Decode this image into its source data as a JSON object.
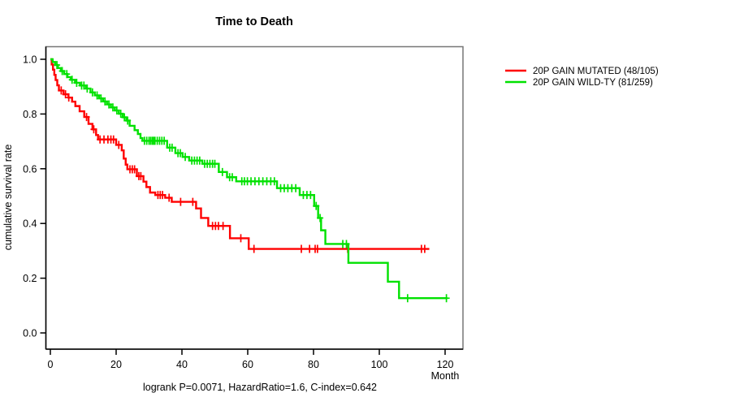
{
  "chart_data": {
    "type": "line",
    "subtype": "kaplan-meier-step-curve",
    "title": "Time to Death",
    "xlabel": "Month",
    "ylabel": "cumulative survival rate",
    "caption": "logrank P=0.0071, HazardRatio=1.6, C-index=0.642",
    "logrank_p": "0.0071",
    "hazard_ratio": "1.6",
    "c_index": "0.642",
    "x_ticks": [
      0,
      20,
      40,
      60,
      80,
      100,
      120
    ],
    "y_ticks": [
      "0.0",
      "0.2",
      "0.4",
      "0.6",
      "0.8",
      "1.0"
    ],
    "xlim": [
      0,
      125
    ],
    "ylim": [
      0.0,
      1.0
    ],
    "grid": false,
    "legend_position": "right-outside",
    "series": [
      {
        "name": "20P GAIN MUTATED (48/105)",
        "events": 48,
        "n": 105,
        "color": "#ff0000",
        "steps": [
          [
            0,
            1.0
          ],
          [
            0.4,
            0.981
          ],
          [
            0.8,
            0.962
          ],
          [
            1.2,
            0.943
          ],
          [
            1.6,
            0.924
          ],
          [
            2.1,
            0.905
          ],
          [
            2.6,
            0.886
          ],
          [
            4.0,
            0.872
          ],
          [
            5.5,
            0.86
          ],
          [
            6.6,
            0.845
          ],
          [
            7.6,
            0.829
          ],
          [
            8.9,
            0.81
          ],
          [
            10.3,
            0.789
          ],
          [
            11.6,
            0.764
          ],
          [
            12.8,
            0.744
          ],
          [
            13.9,
            0.723
          ],
          [
            14.5,
            0.707
          ],
          [
            20.0,
            0.687
          ],
          [
            21.7,
            0.667
          ],
          [
            22.3,
            0.637
          ],
          [
            22.9,
            0.615
          ],
          [
            23.4,
            0.598
          ],
          [
            26.3,
            0.573
          ],
          [
            28.3,
            0.553
          ],
          [
            29.2,
            0.533
          ],
          [
            30.3,
            0.513
          ],
          [
            31.9,
            0.504
          ],
          [
            34.9,
            0.494
          ],
          [
            36.9,
            0.479
          ],
          [
            44.3,
            0.455
          ],
          [
            45.8,
            0.42
          ],
          [
            48.0,
            0.391
          ],
          [
            54.6,
            0.346
          ],
          [
            60.3,
            0.307
          ]
        ],
        "end_month": 115.2,
        "censor_months": [
          3.3,
          4.6,
          5.6,
          11.0,
          13.2,
          15.1,
          16.3,
          17.5,
          18.4,
          19.2,
          20.8,
          24.2,
          24.9,
          25.6,
          26.9,
          27.5,
          32.7,
          33.4,
          34.1,
          36.1,
          39.6,
          43.3,
          49.3,
          50.2,
          51.1,
          52.5,
          57.9,
          61.9,
          76.3,
          78.8,
          80.5,
          81.2,
          90.4,
          112.8,
          113.8
        ]
      },
      {
        "name": "20P GAIN WILD-TY (81/259)",
        "events": 81,
        "n": 259,
        "color": "#00e100",
        "steps": [
          [
            0,
            1.0
          ],
          [
            0.7,
            0.99
          ],
          [
            1.5,
            0.979
          ],
          [
            2.3,
            0.968
          ],
          [
            3.2,
            0.957
          ],
          [
            4.2,
            0.946
          ],
          [
            5.2,
            0.935
          ],
          [
            6.2,
            0.925
          ],
          [
            7.5,
            0.914
          ],
          [
            9.0,
            0.904
          ],
          [
            10.8,
            0.893
          ],
          [
            12.2,
            0.879
          ],
          [
            13.5,
            0.868
          ],
          [
            14.8,
            0.857
          ],
          [
            16.0,
            0.846
          ],
          [
            17.2,
            0.835
          ],
          [
            18.4,
            0.824
          ],
          [
            19.6,
            0.813
          ],
          [
            20.8,
            0.801
          ],
          [
            22.0,
            0.788
          ],
          [
            23.1,
            0.776
          ],
          [
            24.1,
            0.757
          ],
          [
            25.6,
            0.741
          ],
          [
            26.6,
            0.727
          ],
          [
            27.4,
            0.712
          ],
          [
            28.0,
            0.702
          ],
          [
            35.5,
            0.677
          ],
          [
            38.0,
            0.657
          ],
          [
            40.2,
            0.643
          ],
          [
            42.2,
            0.63
          ],
          [
            46.2,
            0.618
          ],
          [
            51.2,
            0.588
          ],
          [
            53.7,
            0.569
          ],
          [
            56.5,
            0.554
          ],
          [
            68.9,
            0.529
          ],
          [
            75.8,
            0.504
          ],
          [
            80.2,
            0.464
          ],
          [
            81.4,
            0.42
          ],
          [
            82.3,
            0.375
          ],
          [
            83.6,
            0.325
          ],
          [
            90.6,
            0.256
          ],
          [
            102.6,
            0.187
          ],
          [
            106.0,
            0.127
          ]
        ],
        "end_month": 120.7,
        "censor_months": [
          2.0,
          3.6,
          5.0,
          6.6,
          8.0,
          9.5,
          10.2,
          11.2,
          12.8,
          14.2,
          15.4,
          16.6,
          17.8,
          19.0,
          20.2,
          21.4,
          22.5,
          23.5,
          28.6,
          29.3,
          30.0,
          30.5,
          31.0,
          31.4,
          31.8,
          32.5,
          33.2,
          33.9,
          34.6,
          36.3,
          37.0,
          38.8,
          39.5,
          41.0,
          43.0,
          43.8,
          44.6,
          45.4,
          46.9,
          47.7,
          48.5,
          49.3,
          50.0,
          52.3,
          54.5,
          55.3,
          58.2,
          59.0,
          59.9,
          61.0,
          62.2,
          63.4,
          64.6,
          65.8,
          67.0,
          68.1,
          70.0,
          71.1,
          72.2,
          73.4,
          74.6,
          76.9,
          78.0,
          79.1,
          80.8,
          82.0,
          88.9,
          90.0,
          108.6,
          120.4
        ]
      }
    ],
    "frame_color": "#777777",
    "axis_color": "#000000"
  }
}
